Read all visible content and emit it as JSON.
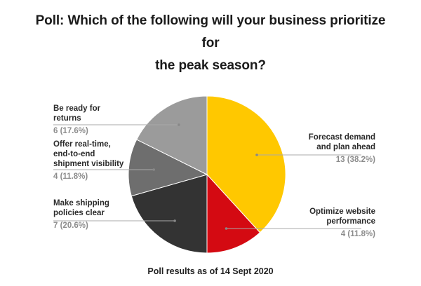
{
  "chart_data": {
    "type": "pie",
    "title_lines": [
      "Poll: Which of the following will your business prioritize for",
      "the peak season?"
    ],
    "footer": "Poll results as of 14 Sept 2020",
    "slices": [
      {
        "name_lines": [
          "Forecast demand",
          "and plan ahead"
        ],
        "value": 13,
        "label": "13 (38.2%)",
        "color": "#FFC800"
      },
      {
        "name_lines": [
          "Optimize website",
          "performance"
        ],
        "value": 4,
        "label": "4 (11.8%)",
        "color": "#D40A12"
      },
      {
        "name_lines": [
          "Make shipping",
          "policies clear"
        ],
        "value": 7,
        "label": "7 (20.6%)",
        "color": "#333333"
      },
      {
        "name_lines": [
          "Offer real-time,",
          "end-to-end",
          "shipment visibility"
        ],
        "value": 4,
        "label": "4 (11.8%)",
        "color": "#6E6E6E"
      },
      {
        "name_lines": [
          "Be ready for",
          "returns"
        ],
        "value": 6,
        "label": "6 (17.6%)",
        "color": "#9B9B9B"
      }
    ]
  }
}
